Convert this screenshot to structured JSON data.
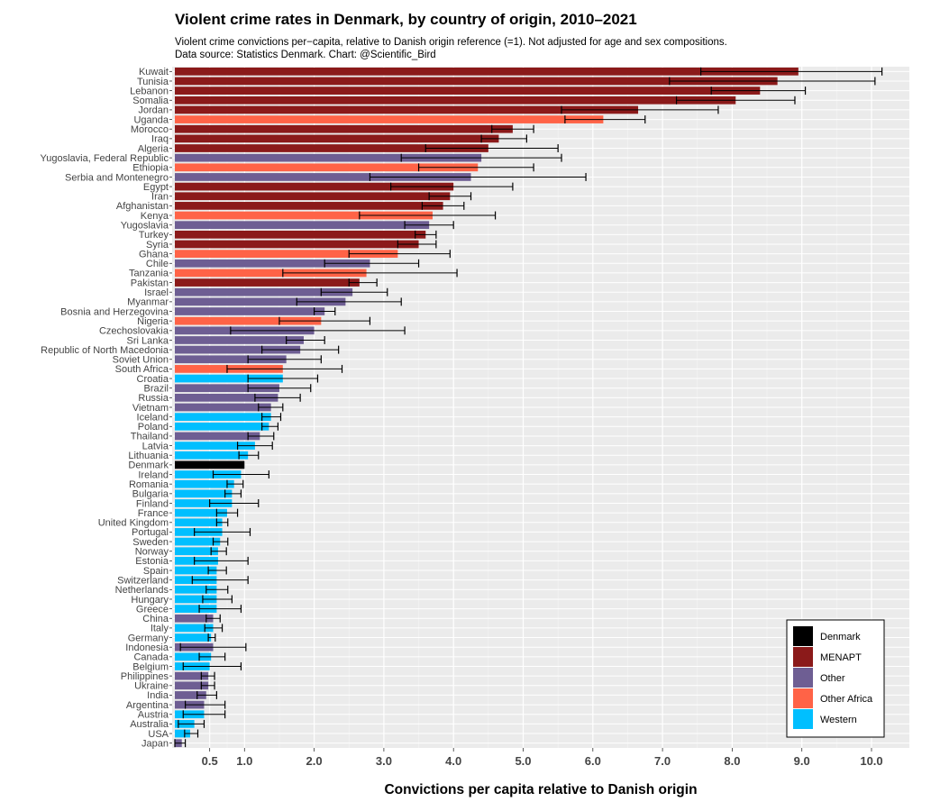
{
  "chart_data": {
    "type": "bar",
    "orientation": "horizontal",
    "title": "Violent crime rates in Denmark, by country of origin, 2010–2021",
    "subtitle": "Violent crime convictions per−capita, relative to Danish origin reference (=1). Not adjusted for age and sex compositions.",
    "source": "Data source: Statistics Denmark. Chart: @Scientific_Bird",
    "xlabel": "Convictions per capita relative to Danish origin",
    "xlim": [
      0,
      10.4
    ],
    "xticks": [
      0.5,
      1.0,
      2.0,
      3.0,
      4.0,
      5.0,
      6.0,
      7.0,
      8.0,
      9.0,
      10.0
    ],
    "xtick_labels": [
      "0.5",
      "1.0",
      "2.0",
      "3.0",
      "4.0",
      "5.0",
      "6.0",
      "7.0",
      "8.0",
      "9.0",
      "10.0"
    ],
    "grid": true,
    "legend_position": "bottom-right",
    "groups": [
      {
        "name": "Denmark",
        "color": "#000000"
      },
      {
        "name": "MENAPT",
        "color": "#8B1A1A"
      },
      {
        "name": "Other",
        "color": "#6E5E93"
      },
      {
        "name": "Other Africa",
        "color": "#FF6347"
      },
      {
        "name": "Western",
        "color": "#00BFFF"
      }
    ],
    "bars": [
      {
        "label": "Kuwait",
        "value": 8.95,
        "low": 7.55,
        "high": 10.15,
        "group": "MENAPT"
      },
      {
        "label": "Tunisia",
        "value": 8.65,
        "low": 7.1,
        "high": 10.05,
        "group": "MENAPT"
      },
      {
        "label": "Lebanon",
        "value": 8.4,
        "low": 7.7,
        "high": 9.05,
        "group": "MENAPT"
      },
      {
        "label": "Somalia",
        "value": 8.05,
        "low": 7.2,
        "high": 8.9,
        "group": "MENAPT"
      },
      {
        "label": "Jordan",
        "value": 6.65,
        "low": 5.55,
        "high": 7.8,
        "group": "MENAPT"
      },
      {
        "label": "Uganda",
        "value": 6.15,
        "low": 5.6,
        "high": 6.75,
        "group": "Other Africa"
      },
      {
        "label": "Morocco",
        "value": 4.85,
        "low": 4.55,
        "high": 5.15,
        "group": "MENAPT"
      },
      {
        "label": "Iraq",
        "value": 4.65,
        "low": 4.4,
        "high": 5.05,
        "group": "MENAPT"
      },
      {
        "label": "Algeria",
        "value": 4.5,
        "low": 3.6,
        "high": 5.5,
        "group": "MENAPT"
      },
      {
        "label": "Yugoslavia, Federal Republic",
        "value": 4.4,
        "low": 3.25,
        "high": 5.55,
        "group": "Other"
      },
      {
        "label": "Ethiopia",
        "value": 4.35,
        "low": 3.5,
        "high": 5.15,
        "group": "Other Africa"
      },
      {
        "label": "Serbia and Montenegro",
        "value": 4.25,
        "low": 2.8,
        "high": 5.9,
        "group": "Other"
      },
      {
        "label": "Egypt",
        "value": 4.0,
        "low": 3.1,
        "high": 4.85,
        "group": "MENAPT"
      },
      {
        "label": "Iran",
        "value": 3.95,
        "low": 3.65,
        "high": 4.25,
        "group": "MENAPT"
      },
      {
        "label": "Afghanistan",
        "value": 3.85,
        "low": 3.55,
        "high": 4.15,
        "group": "MENAPT"
      },
      {
        "label": "Kenya",
        "value": 3.7,
        "low": 2.65,
        "high": 4.6,
        "group": "Other Africa"
      },
      {
        "label": "Yugoslavia",
        "value": 3.65,
        "low": 3.3,
        "high": 4.0,
        "group": "Other"
      },
      {
        "label": "Turkey",
        "value": 3.6,
        "low": 3.45,
        "high": 3.75,
        "group": "MENAPT"
      },
      {
        "label": "Syria",
        "value": 3.5,
        "low": 3.2,
        "high": 3.75,
        "group": "MENAPT"
      },
      {
        "label": "Ghana",
        "value": 3.2,
        "low": 2.5,
        "high": 3.95,
        "group": "Other Africa"
      },
      {
        "label": "Chile",
        "value": 2.8,
        "low": 2.15,
        "high": 3.5,
        "group": "Other"
      },
      {
        "label": "Tanzania",
        "value": 2.75,
        "low": 1.55,
        "high": 4.05,
        "group": "Other Africa"
      },
      {
        "label": "Pakistan",
        "value": 2.65,
        "low": 2.5,
        "high": 2.9,
        "group": "MENAPT"
      },
      {
        "label": "Israel",
        "value": 2.55,
        "low": 2.1,
        "high": 3.05,
        "group": "Other"
      },
      {
        "label": "Myanmar",
        "value": 2.45,
        "low": 1.75,
        "high": 3.25,
        "group": "Other"
      },
      {
        "label": "Bosnia and Herzegovina",
        "value": 2.15,
        "low": 2.0,
        "high": 2.3,
        "group": "Other"
      },
      {
        "label": "Nigeria",
        "value": 2.1,
        "low": 1.5,
        "high": 2.8,
        "group": "Other Africa"
      },
      {
        "label": "Czechoslovakia",
        "value": 2.0,
        "low": 0.8,
        "high": 3.3,
        "group": "Other"
      },
      {
        "label": "Sri Lanka",
        "value": 1.85,
        "low": 1.6,
        "high": 2.15,
        "group": "Other"
      },
      {
        "label": "Republic of North Macedonia",
        "value": 1.8,
        "low": 1.25,
        "high": 2.35,
        "group": "Other"
      },
      {
        "label": "Soviet Union",
        "value": 1.6,
        "low": 1.05,
        "high": 2.1,
        "group": "Other"
      },
      {
        "label": "South Africa",
        "value": 1.55,
        "low": 0.75,
        "high": 2.4,
        "group": "Other Africa"
      },
      {
        "label": "Croatia",
        "value": 1.55,
        "low": 1.05,
        "high": 2.05,
        "group": "Western"
      },
      {
        "label": "Brazil",
        "value": 1.5,
        "low": 1.05,
        "high": 1.95,
        "group": "Other"
      },
      {
        "label": "Russia",
        "value": 1.48,
        "low": 1.15,
        "high": 1.8,
        "group": "Other"
      },
      {
        "label": "Vietnam",
        "value": 1.38,
        "low": 1.2,
        "high": 1.55,
        "group": "Other"
      },
      {
        "label": "Iceland",
        "value": 1.38,
        "low": 1.25,
        "high": 1.52,
        "group": "Western"
      },
      {
        "label": "Poland",
        "value": 1.35,
        "low": 1.25,
        "high": 1.48,
        "group": "Western"
      },
      {
        "label": "Thailand",
        "value": 1.22,
        "low": 1.05,
        "high": 1.42,
        "group": "Other"
      },
      {
        "label": "Latvia",
        "value": 1.15,
        "low": 0.9,
        "high": 1.4,
        "group": "Western"
      },
      {
        "label": "Lithuania",
        "value": 1.05,
        "low": 0.92,
        "high": 1.2,
        "group": "Western"
      },
      {
        "label": "Denmark",
        "value": 1.0,
        "group": "Denmark"
      },
      {
        "label": "Ireland",
        "value": 0.95,
        "low": 0.55,
        "high": 1.35,
        "group": "Western"
      },
      {
        "label": "Romania",
        "value": 0.85,
        "low": 0.75,
        "high": 0.98,
        "group": "Western"
      },
      {
        "label": "Bulgaria",
        "value": 0.82,
        "low": 0.72,
        "high": 0.95,
        "group": "Western"
      },
      {
        "label": "Finland",
        "value": 0.82,
        "low": 0.5,
        "high": 1.2,
        "group": "Western"
      },
      {
        "label": "France",
        "value": 0.75,
        "low": 0.6,
        "high": 0.9,
        "group": "Western"
      },
      {
        "label": "United Kingdom",
        "value": 0.68,
        "low": 0.6,
        "high": 0.76,
        "group": "Western"
      },
      {
        "label": "Portugal",
        "value": 0.68,
        "low": 0.28,
        "high": 1.08,
        "group": "Western"
      },
      {
        "label": "Sweden",
        "value": 0.65,
        "low": 0.55,
        "high": 0.76,
        "group": "Western"
      },
      {
        "label": "Norway",
        "value": 0.62,
        "low": 0.52,
        "high": 0.74,
        "group": "Western"
      },
      {
        "label": "Estonia",
        "value": 0.62,
        "low": 0.28,
        "high": 1.05,
        "group": "Western"
      },
      {
        "label": "Spain",
        "value": 0.6,
        "low": 0.48,
        "high": 0.74,
        "group": "Western"
      },
      {
        "label": "Switzerland",
        "value": 0.6,
        "low": 0.25,
        "high": 1.05,
        "group": "Western"
      },
      {
        "label": "Netherlands",
        "value": 0.6,
        "low": 0.45,
        "high": 0.76,
        "group": "Western"
      },
      {
        "label": "Hungary",
        "value": 0.6,
        "low": 0.4,
        "high": 0.82,
        "group": "Western"
      },
      {
        "label": "Greece",
        "value": 0.6,
        "low": 0.35,
        "high": 0.95,
        "group": "Western"
      },
      {
        "label": "China",
        "value": 0.55,
        "low": 0.45,
        "high": 0.65,
        "group": "Other"
      },
      {
        "label": "Italy",
        "value": 0.55,
        "low": 0.43,
        "high": 0.68,
        "group": "Western"
      },
      {
        "label": "Germany",
        "value": 0.52,
        "low": 0.48,
        "high": 0.58,
        "group": "Western"
      },
      {
        "label": "Indonesia",
        "value": 0.55,
        "low": 0.08,
        "high": 1.02,
        "group": "Other"
      },
      {
        "label": "Canada",
        "value": 0.52,
        "low": 0.35,
        "high": 0.72,
        "group": "Western"
      },
      {
        "label": "Belgium",
        "value": 0.5,
        "low": 0.12,
        "high": 0.95,
        "group": "Western"
      },
      {
        "label": "Philippines",
        "value": 0.48,
        "low": 0.38,
        "high": 0.57,
        "group": "Other"
      },
      {
        "label": "Ukraine",
        "value": 0.48,
        "low": 0.38,
        "high": 0.57,
        "group": "Other"
      },
      {
        "label": "India",
        "value": 0.45,
        "low": 0.32,
        "high": 0.6,
        "group": "Other"
      },
      {
        "label": "Argentina",
        "value": 0.42,
        "low": 0.15,
        "high": 0.72,
        "group": "Other"
      },
      {
        "label": "Austria",
        "value": 0.42,
        "low": 0.12,
        "high": 0.72,
        "group": "Western"
      },
      {
        "label": "Australia",
        "value": 0.28,
        "low": 0.05,
        "high": 0.42,
        "group": "Western"
      },
      {
        "label": "USA",
        "value": 0.22,
        "low": 0.14,
        "high": 0.33,
        "group": "Western"
      },
      {
        "label": "Japan",
        "value": 0.1,
        "low": 0.0,
        "high": 0.15,
        "group": "Other"
      }
    ]
  }
}
